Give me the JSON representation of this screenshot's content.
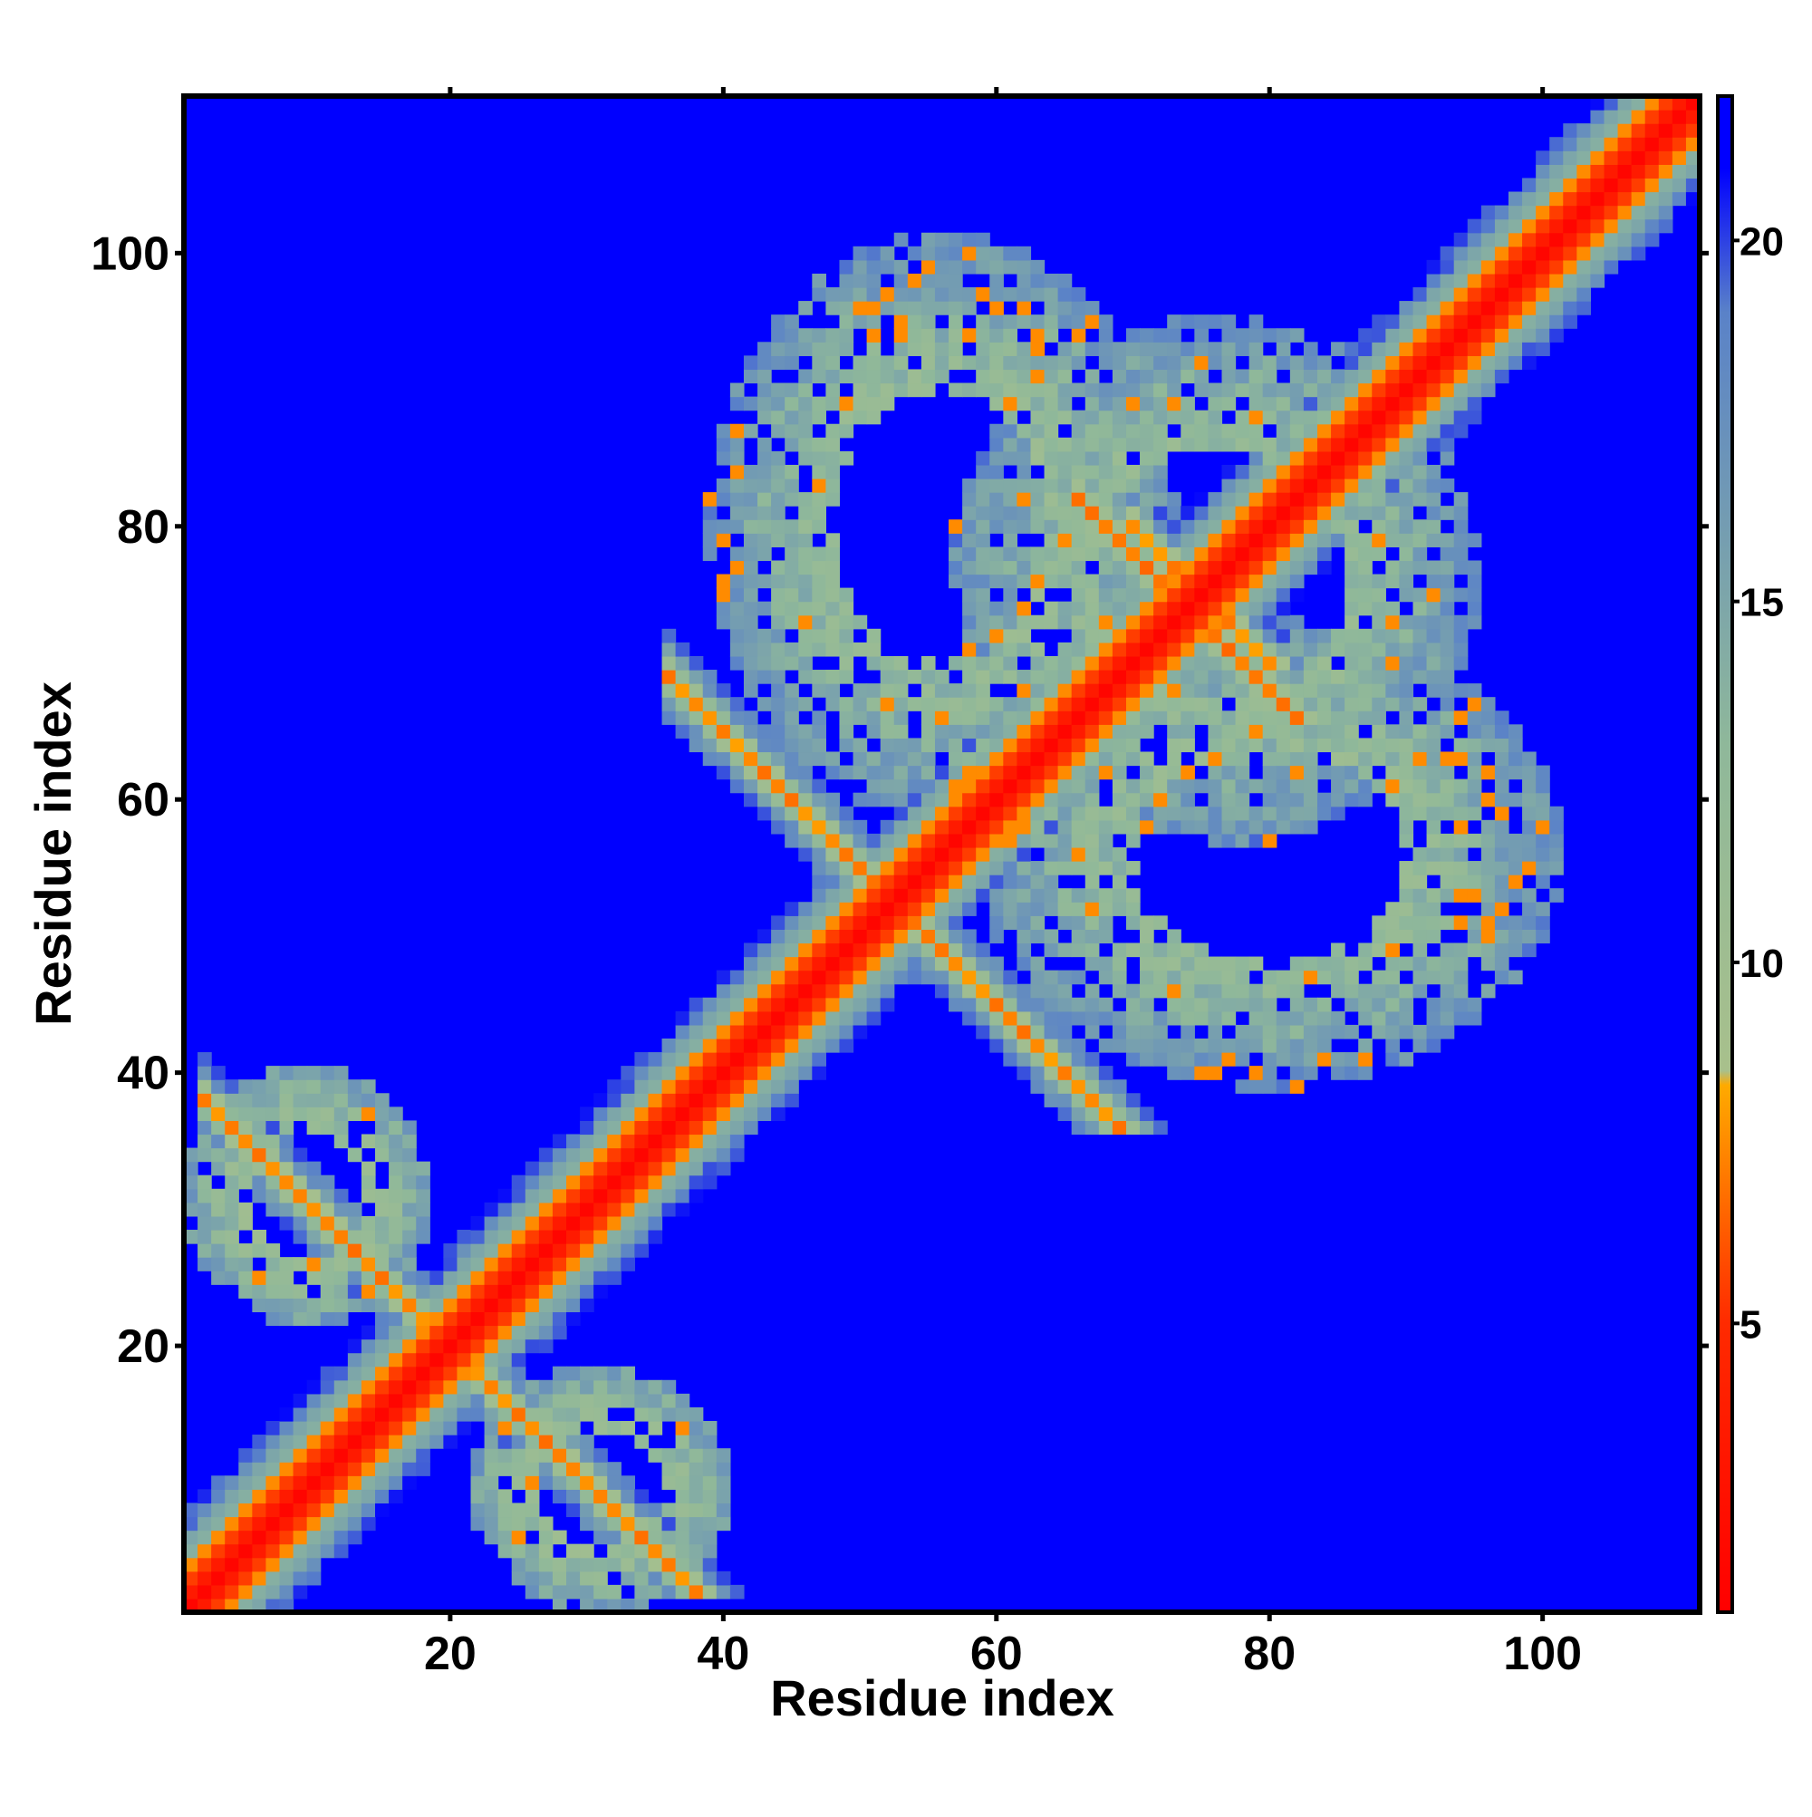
{
  "chart_data": {
    "type": "heatmap",
    "title": "",
    "xlabel": "Residue index",
    "ylabel": "Residue index",
    "n_residues": 111,
    "xlim": [
      1,
      111
    ],
    "ylim": [
      1,
      111
    ],
    "x_ticks": [
      20,
      40,
      60,
      80,
      100
    ],
    "y_ticks": [
      20,
      40,
      60,
      80,
      100
    ],
    "colorbar": {
      "min": 1,
      "max": 22,
      "ticks": [
        5,
        10,
        15,
        20
      ],
      "stops": [
        {
          "value": 1,
          "color": "#ff0000"
        },
        {
          "value": 5,
          "color": "#ff2a00"
        },
        {
          "value": 8.3,
          "color": "#ffaa00"
        },
        {
          "value": 8.5,
          "color": "#a8c08c"
        },
        {
          "value": 13,
          "color": "#8fb89a"
        },
        {
          "value": 19,
          "color": "#5a82c8"
        },
        {
          "value": 21,
          "color": "#0000ff"
        }
      ]
    },
    "background_value": 21,
    "features": [
      {
        "kind": "diagonal",
        "note": "i == j"
      },
      {
        "kind": "antiparallel_strip",
        "sum": 40,
        "from_x": 2,
        "to_x": 36,
        "distance": 6.5
      },
      {
        "kind": "antiparallel_strip",
        "sum": 105,
        "from_x": 36,
        "to_x": 66,
        "distance": 6.8
      },
      {
        "kind": "antiparallel_strip",
        "sum": 148,
        "from_x": 66,
        "to_x": 84,
        "distance": 6.5
      },
      {
        "kind": "antiparallel_strip",
        "sum": 150,
        "from_x": 70,
        "to_x": 80,
        "distance": 6.8
      },
      {
        "kind": "contact_patch",
        "x": [
          40,
          72
        ],
        "y": [
          60,
          100
        ],
        "distance": 12
      },
      {
        "kind": "contact_patch",
        "x": [
          58,
          100
        ],
        "y": [
          30,
          58
        ],
        "distance": 12
      },
      {
        "kind": "contact_patch",
        "x": [
          58,
          94
        ],
        "y": [
          60,
          94
        ],
        "distance": 12
      },
      {
        "kind": "contact_patch",
        "x": [
          1,
          18
        ],
        "y": [
          22,
          40
        ],
        "distance": 11
      },
      {
        "kind": "contact_patch",
        "x": [
          22,
          38
        ],
        "y": [
          1,
          18
        ],
        "distance": 11
      }
    ]
  }
}
